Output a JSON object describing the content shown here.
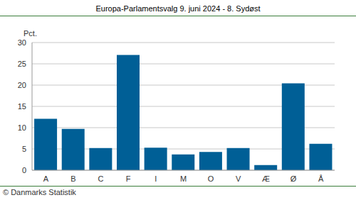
{
  "chart_data": {
    "type": "bar",
    "title": "Europa-Parlamentsvalg 9. juni 2024 - 8. Sydøst",
    "ylabel": "Pct.",
    "annotation": "© Danmarks Statistik",
    "categories": [
      "A",
      "B",
      "C",
      "F",
      "I",
      "M",
      "O",
      "V",
      "Æ",
      "Ø",
      "Å"
    ],
    "values": [
      12.1,
      9.7,
      5.2,
      27.1,
      5.3,
      3.7,
      4.3,
      5.2,
      1.2,
      20.4,
      6.2
    ],
    "color": "#005f96",
    "ylim": [
      0,
      30
    ],
    "yticks": [
      0,
      5,
      10,
      15,
      20,
      25,
      30
    ],
    "grid": true
  }
}
